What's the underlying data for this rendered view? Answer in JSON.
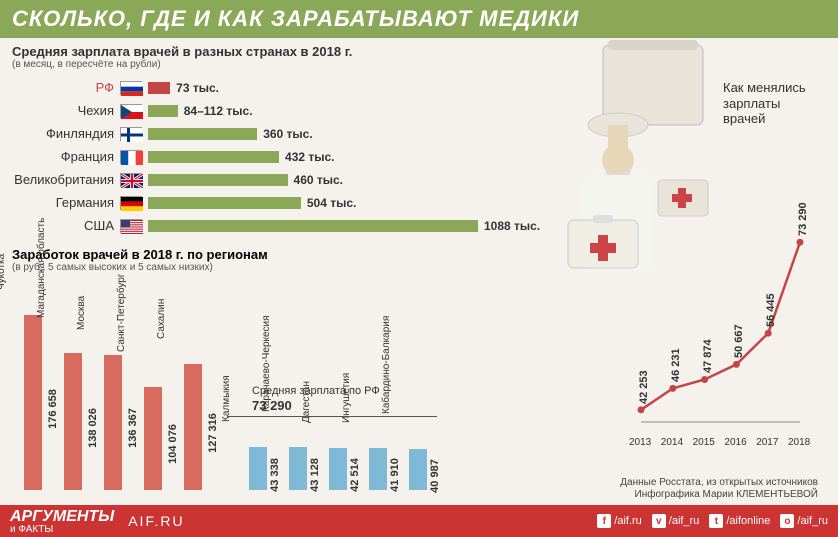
{
  "header": "СКОЛЬКО, ГДЕ И КАК ЗАРАБАТЫВАЮТ МЕДИКИ",
  "countries": {
    "title": "Средняя зарплата врачей в разных странах в 2018 г.",
    "note": "(в месяц, в пересчёте на рубли)",
    "max_value": 1088,
    "bar_color_rf": "#c44545",
    "bar_color_other": "#8aa858",
    "rows": [
      {
        "name": "РФ",
        "value": 73,
        "label": "73 тыс.",
        "name_color": "#c44545",
        "flag": "rf"
      },
      {
        "name": "Чехия",
        "value": 98,
        "label": "84–112 тыс.",
        "flag": "cz"
      },
      {
        "name": "Финляндия",
        "value": 360,
        "label": "360 тыс.",
        "flag": "fi"
      },
      {
        "name": "Франция",
        "value": 432,
        "label": "432 тыс.",
        "flag": "fr"
      },
      {
        "name": "Великобритания",
        "value": 460,
        "label": "460 тыс.",
        "flag": "uk"
      },
      {
        "name": "Германия",
        "value": 504,
        "label": "504 тыс.",
        "flag": "de"
      },
      {
        "name": "США",
        "value": 1088,
        "label": "1088 тыс.",
        "flag": "us"
      }
    ]
  },
  "regions": {
    "title": "Заработок врачей в 2018 г. по регионам",
    "note": "(в руб., 5 самых высоких и 5 самых низких)",
    "avg_label": "Средняя зарплата по РФ",
    "avg_value": "73 290",
    "bar_color_high": "#d66b5e",
    "bar_color_low": "#7eb9d6",
    "max_value": 176658,
    "high": [
      {
        "name": "Чукотка",
        "value": 176658,
        "label": "176 658"
      },
      {
        "name": "Магаданская область",
        "value": 138026,
        "label": "138 026"
      },
      {
        "name": "Москва",
        "value": 136367,
        "label": "136 367"
      },
      {
        "name": "Санкт-Петербург",
        "value": 104076,
        "label": "104 076"
      },
      {
        "name": "Сахалин",
        "value": 127316,
        "label": "127 316"
      }
    ],
    "low": [
      {
        "name": "Калмыкия",
        "value": 43338,
        "label": "43 338"
      },
      {
        "name": "Карачаево-Черкесия",
        "value": 43128,
        "label": "43 128"
      },
      {
        "name": "Дагестан",
        "value": 42514,
        "label": "42 514"
      },
      {
        "name": "Ингушетия",
        "value": 41910,
        "label": "41 910"
      },
      {
        "name": "Кабардино-Балкария",
        "value": 40987,
        "label": "40 987"
      }
    ]
  },
  "line_chart": {
    "title": "Как менялись зарплаты врачей",
    "line_color": "#c44545",
    "dot_color": "#c44545",
    "years": [
      "2013",
      "2014",
      "2015",
      "2016",
      "2017",
      "2018"
    ],
    "values": [
      42253,
      46231,
      47874,
      50667,
      56445,
      73290
    ],
    "labels": [
      "42 253",
      "46 231",
      "47 874",
      "50 667",
      "56 445",
      "73 290"
    ],
    "ymin": 40000,
    "ymax": 75000
  },
  "source": {
    "line1": "Данные Росстата, из открытых источников",
    "line2": "Инфографика Марии КЛЕМЕНТЬЕВОЙ"
  },
  "footer": {
    "brand1": "АРГУМЕНТЫ",
    "brand2": "и ФАКТЫ",
    "site": "AIF.RU",
    "social": [
      {
        "icon": "f",
        "text": "/aif.ru"
      },
      {
        "icon": "v",
        "text": "/aif_ru"
      },
      {
        "icon": "t",
        "text": "/aifonline"
      },
      {
        "icon": "o",
        "text": "/aif_ru"
      }
    ]
  }
}
